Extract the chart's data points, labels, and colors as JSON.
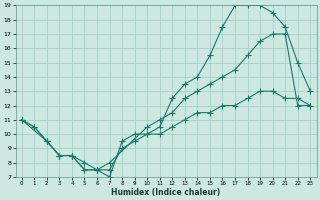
{
  "xlabel": "Humidex (Indice chaleur)",
  "xlim": [
    -0.5,
    23.5
  ],
  "ylim": [
    7,
    19
  ],
  "xticks": [
    0,
    1,
    2,
    3,
    4,
    5,
    6,
    7,
    8,
    9,
    10,
    11,
    12,
    13,
    14,
    15,
    16,
    17,
    18,
    19,
    20,
    21,
    22,
    23
  ],
  "yticks": [
    7,
    8,
    9,
    10,
    11,
    12,
    13,
    14,
    15,
    16,
    17,
    18,
    19
  ],
  "background_color": "#cce8e0",
  "grid_color": "#9ecec4",
  "line_color": "#1a7a6e",
  "marker": "+",
  "line1_x": [
    0,
    1,
    2,
    3,
    4,
    5,
    6,
    7,
    8,
    9,
    10,
    11,
    12,
    13,
    14,
    15,
    16,
    17,
    18,
    19,
    20,
    21,
    22,
    23
  ],
  "line1_y": [
    11,
    10.5,
    9.5,
    8.5,
    8.5,
    7.5,
    7.5,
    7,
    9.5,
    10,
    10,
    10.5,
    12.5,
    13.5,
    14,
    15.5,
    17.5,
    19,
    19,
    19,
    18.5,
    17.5,
    15,
    13
  ],
  "line2_x": [
    0,
    2,
    3,
    4,
    5,
    6,
    7,
    10,
    11,
    12,
    13,
    14,
    15,
    16,
    17,
    18,
    19,
    20,
    21,
    22,
    23
  ],
  "line2_y": [
    11,
    9.5,
    8.5,
    8.5,
    8,
    7.5,
    8,
    10.5,
    11,
    11.5,
    12.5,
    13,
    13.5,
    14,
    14.5,
    15.5,
    16.5,
    17,
    17,
    12,
    12
  ],
  "line3_x": [
    0,
    1,
    2,
    3,
    4,
    5,
    6,
    7,
    8,
    9,
    10,
    11,
    12,
    13,
    14,
    15,
    16,
    17,
    18,
    19,
    20,
    21,
    22,
    23
  ],
  "line3_y": [
    11,
    10.5,
    9.5,
    8.5,
    8.5,
    7.5,
    7.5,
    7.5,
    9,
    9.5,
    10,
    10,
    10.5,
    11,
    11.5,
    11.5,
    12,
    12,
    12.5,
    13,
    13,
    12.5,
    12.5,
    12
  ]
}
